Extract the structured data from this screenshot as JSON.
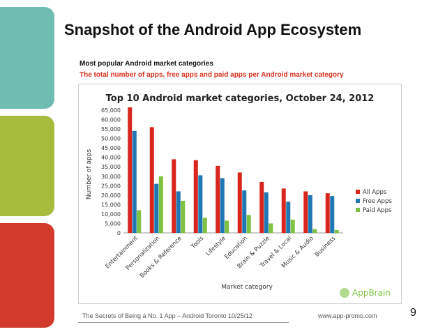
{
  "slide": {
    "title": "Snapshot of the Android App Ecosystem",
    "subtitle_main": "Most popular Android market categories",
    "subtitle_sub": "The total number of apps, free apps and paid apps per Android market category",
    "footer_text": "The Secrets of Being a No. 1 App – Android Toronto   10/25/12",
    "footer_url": "www.app-promo.com",
    "page_number": "9",
    "colors": {
      "teal": "#6fbcb3",
      "green": "#a7bb3c",
      "red": "#d23a2c"
    }
  },
  "chart_data": {
    "type": "bar",
    "title": "Top 10 Android market categories, October 24, 2012",
    "xlabel": "Market category",
    "ylabel": "Number of apps",
    "ylim": [
      0,
      65000
    ],
    "yticks": [
      "65,000",
      "60,000",
      "55,000",
      "50,000",
      "45,000",
      "40,000",
      "35,000",
      "30,000",
      "25,000",
      "20,000",
      "15,000",
      "10,000",
      "5,000",
      "0"
    ],
    "categories": [
      "Entertainment",
      "Personalization",
      "Books & Reference",
      "Tools",
      "Lifestyle",
      "Education",
      "Brain & Puzzle",
      "Travel & Local",
      "Music & Audio",
      "Business"
    ],
    "series": [
      {
        "name": "All Apps",
        "color": "#d9261c",
        "values": [
          66500,
          56000,
          39000,
          38500,
          35500,
          32000,
          27000,
          23500,
          22000,
          21000
        ]
      },
      {
        "name": "Free Apps",
        "color": "#1f77b4",
        "values": [
          54000,
          26000,
          22000,
          30500,
          29000,
          22500,
          21500,
          16500,
          20000,
          19500
        ]
      },
      {
        "name": "Paid Apps",
        "color": "#7fc241",
        "values": [
          12000,
          30000,
          17000,
          8000,
          6500,
          9500,
          5000,
          7000,
          2000,
          1500
        ]
      }
    ],
    "legend_position": "right",
    "grid": false,
    "watermark": "AppBrain"
  }
}
